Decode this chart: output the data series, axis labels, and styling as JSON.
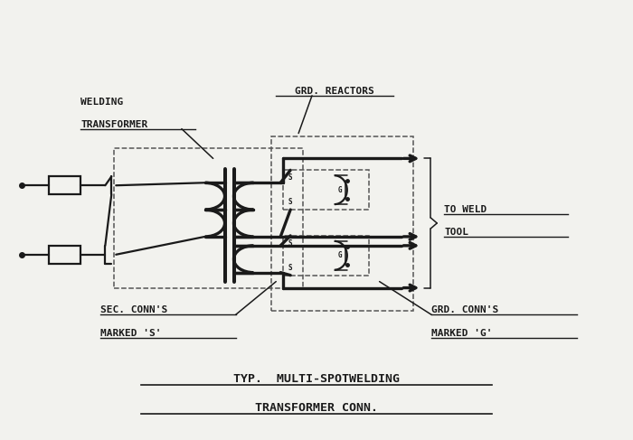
{
  "bg_color": "#f2f2ee",
  "line_color": "#1a1a1a",
  "dashed_color": "#555555",
  "title1": "TYP.  MULTI-SPOTWELDING",
  "title2": "TRANSFORMER CONN.",
  "label_welding_transformer_1": "WELDING",
  "label_welding_transformer_2": "TRANSFORMER",
  "label_grd_reactors": "GRD. REACTORS",
  "label_to_weld_1": "TO WELD",
  "label_to_weld_2": "TOOL",
  "label_sec_conns_1": "SEC. CONN'S",
  "label_sec_conns_2": "MARKED 'S'",
  "label_grd_conns_1": "GRD. CONN'S",
  "label_grd_conns_2": "MARKED 'G'"
}
